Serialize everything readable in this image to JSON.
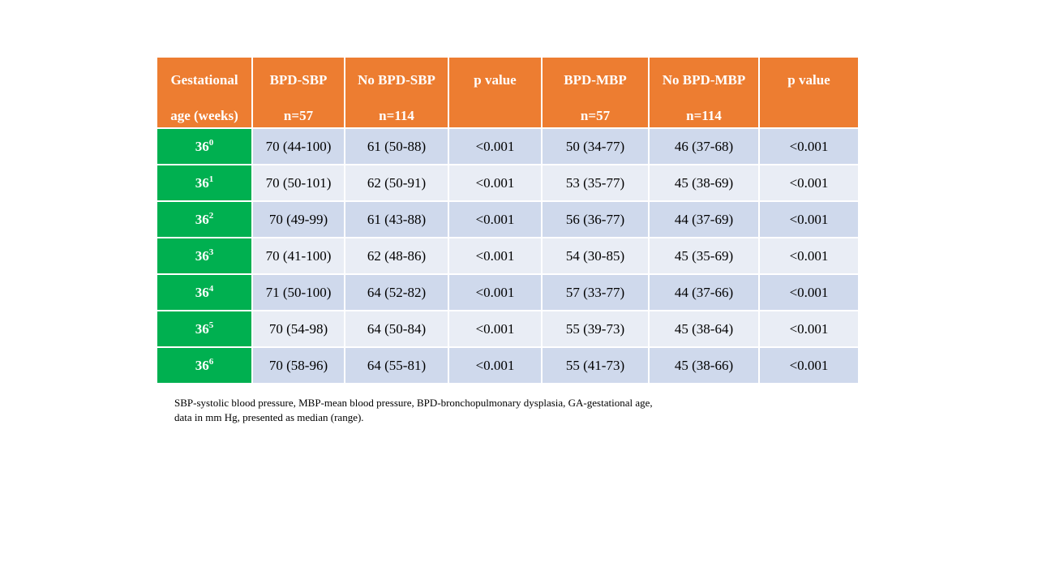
{
  "table": {
    "headers": [
      {
        "line1": "Gestational",
        "line2": "age (weeks)"
      },
      {
        "line1": "BPD-SBP",
        "line2": "n=57"
      },
      {
        "line1": "No BPD-SBP",
        "line2": "n=114"
      },
      {
        "line1": "p value",
        "line2": ""
      },
      {
        "line1": "BPD-MBP",
        "line2": "n=57"
      },
      {
        "line1": "No BPD-MBP",
        "line2": "n=114"
      },
      {
        "line1": "p value",
        "line2": ""
      }
    ],
    "rows": [
      {
        "ga": "36",
        "ga_sup": "0",
        "cells": [
          "70 (44-100)",
          "61 (50-88)",
          "<0.001",
          "50 (34-77)",
          "46 (37-68)",
          "<0.001"
        ]
      },
      {
        "ga": "36",
        "ga_sup": "1",
        "cells": [
          "70 (50-101)",
          "62 (50-91)",
          "<0.001",
          "53 (35-77)",
          "45 (38-69)",
          "<0.001"
        ]
      },
      {
        "ga": "36",
        "ga_sup": "2",
        "cells": [
          "70 (49-99)",
          "61 (43-88)",
          "<0.001",
          "56 (36-77)",
          "44 (37-69)",
          "<0.001"
        ]
      },
      {
        "ga": "36",
        "ga_sup": "3",
        "cells": [
          "70 (41-100)",
          "62 (48-86)",
          "<0.001",
          "54 (30-85)",
          "45 (35-69)",
          "<0.001"
        ]
      },
      {
        "ga": "36",
        "ga_sup": "4",
        "cells": [
          "71 (50-100)",
          "64 (52-82)",
          "<0.001",
          "57 (33-77)",
          "44 (37-66)",
          "<0.001"
        ]
      },
      {
        "ga": "36",
        "ga_sup": "5",
        "cells": [
          "70 (54-98)",
          "64 (50-84)",
          "<0.001",
          "55 (39-73)",
          "45 (38-64)",
          "<0.001"
        ]
      },
      {
        "ga": "36",
        "ga_sup": "6",
        "cells": [
          "70 (58-96)",
          "64 (55-81)",
          "<0.001",
          "55 (41-73)",
          "45 (38-66)",
          "<0.001"
        ]
      }
    ]
  },
  "footnote": {
    "line1": "SBP-systolic blood pressure, MBP-mean blood pressure, BPD-bronchopulmonary dysplasia, GA-gestational age,",
    "line2": "data in mm Hg, presented as median (range)."
  },
  "colors": {
    "header_bg": "#ed7d31",
    "label_bg": "#00b050",
    "row_dark": "#cfd9ec",
    "row_light": "#e9edf5"
  }
}
